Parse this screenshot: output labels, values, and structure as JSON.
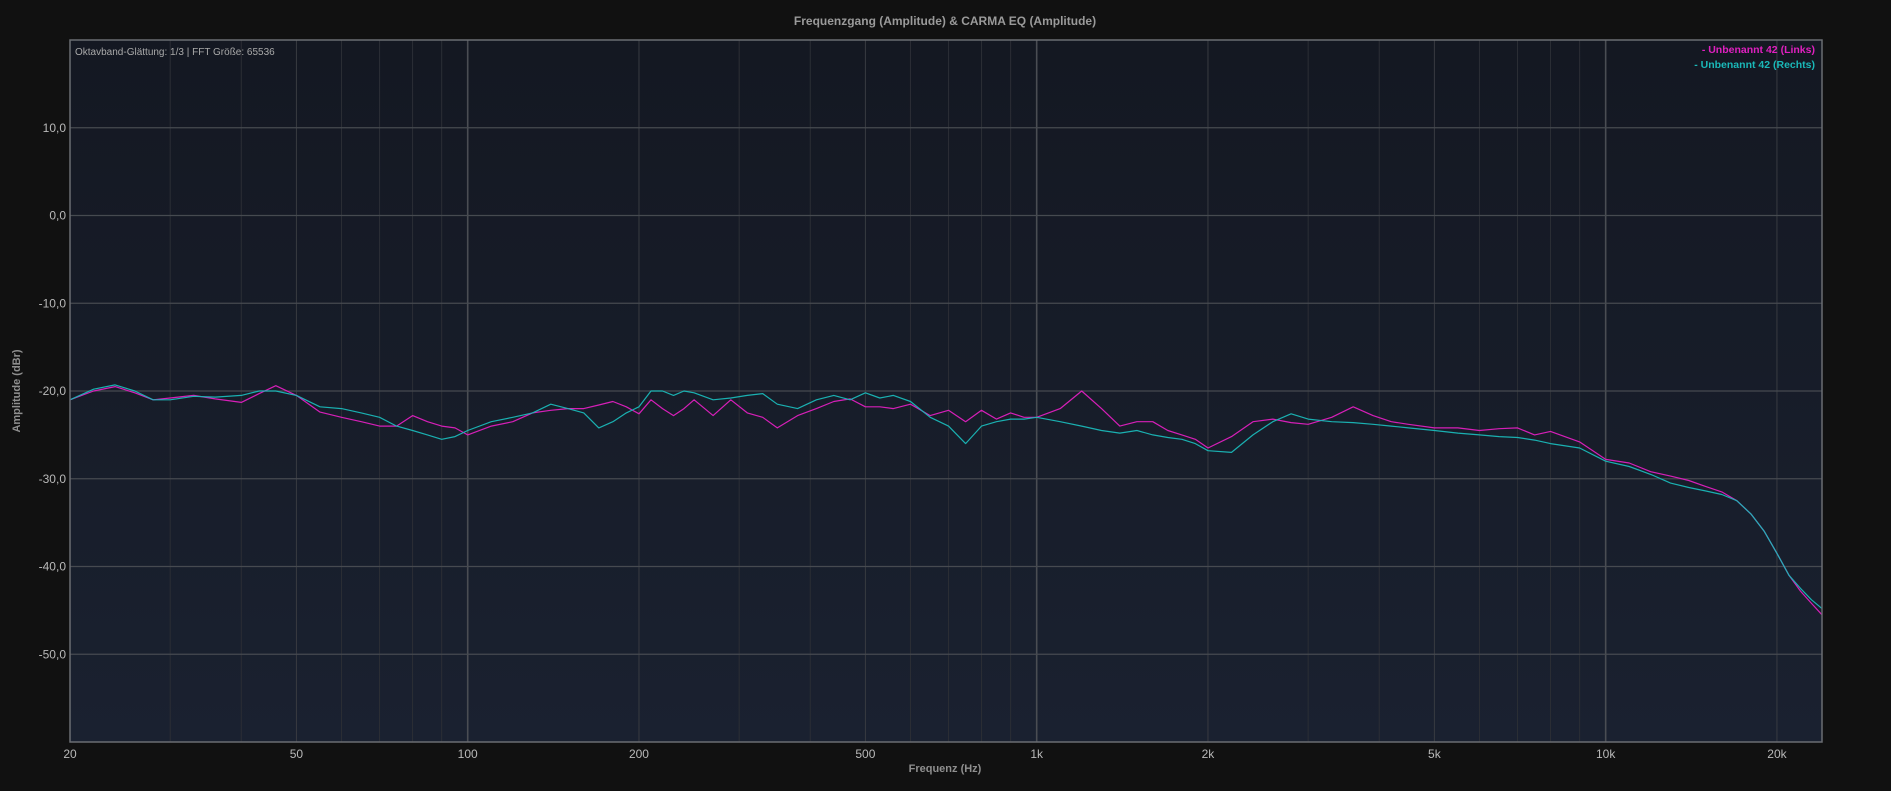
{
  "chart_data": {
    "type": "line",
    "title": "Frequenzgang (Amplitude) & CARMA EQ (Amplitude)",
    "info_text": "Oktavband-Glättung: 1/3 | FFT Größe: 65536",
    "xlabel": "Frequenz (Hz)",
    "ylabel": "Amplitude (dBr)",
    "x_scale": "log",
    "xlim": [
      20,
      24000
    ],
    "ylim": [
      -60,
      20
    ],
    "x_ticks": [
      {
        "value": 20,
        "label": "20"
      },
      {
        "value": 50,
        "label": "50"
      },
      {
        "value": 100,
        "label": "100"
      },
      {
        "value": 200,
        "label": "200"
      },
      {
        "value": 500,
        "label": "500"
      },
      {
        "value": 1000,
        "label": "1k"
      },
      {
        "value": 2000,
        "label": "2k"
      },
      {
        "value": 5000,
        "label": "5k"
      },
      {
        "value": 10000,
        "label": "10k"
      },
      {
        "value": 20000,
        "label": "20k"
      }
    ],
    "y_ticks": [
      {
        "value": 10,
        "label": "10,0"
      },
      {
        "value": 0,
        "label": "0,0"
      },
      {
        "value": -10,
        "label": "-10,0"
      },
      {
        "value": -20,
        "label": "-20,0"
      },
      {
        "value": -30,
        "label": "-30,0"
      },
      {
        "value": -40,
        "label": "-40,0"
      },
      {
        "value": -50,
        "label": "-50,0"
      }
    ],
    "grid": true,
    "legend_position": "top-right",
    "series": [
      {
        "name": "Unbenannt 42 (Links)",
        "legend_label": "- Unbenannt 42 (Links)",
        "color": "#e020c0",
        "x": [
          20,
          22,
          24,
          26,
          28,
          30,
          33,
          36,
          40,
          43,
          46,
          50,
          55,
          60,
          65,
          70,
          75,
          80,
          85,
          90,
          95,
          100,
          110,
          120,
          130,
          140,
          150,
          160,
          170,
          180,
          190,
          200,
          210,
          220,
          230,
          240,
          250,
          270,
          290,
          310,
          330,
          350,
          380,
          410,
          440,
          470,
          500,
          530,
          560,
          600,
          650,
          700,
          750,
          800,
          850,
          900,
          950,
          1000,
          1100,
          1200,
          1300,
          1400,
          1500,
          1600,
          1700,
          1800,
          1900,
          2000,
          2200,
          2400,
          2600,
          2800,
          3000,
          3300,
          3600,
          3900,
          4200,
          4500,
          5000,
          5500,
          6000,
          6500,
          7000,
          7500,
          8000,
          9000,
          10000,
          11000,
          12000,
          13000,
          14000,
          15000,
          16000,
          17000,
          18000,
          19000,
          20000,
          21000,
          22000,
          23000,
          24000
        ],
        "y": [
          -21.0,
          -20.0,
          -19.5,
          -20.2,
          -21.0,
          -20.8,
          -20.5,
          -20.9,
          -21.3,
          -20.3,
          -19.4,
          -20.5,
          -22.4,
          -23.0,
          -23.5,
          -24.0,
          -24.0,
          -22.8,
          -23.5,
          -24.0,
          -24.2,
          -25.0,
          -24.0,
          -23.5,
          -22.5,
          -22.2,
          -22.0,
          -22.0,
          -21.6,
          -21.2,
          -21.8,
          -22.6,
          -21.0,
          -22.0,
          -22.8,
          -22.0,
          -21.0,
          -22.8,
          -21.0,
          -22.5,
          -23.0,
          -24.2,
          -22.8,
          -22.0,
          -21.2,
          -20.9,
          -21.8,
          -21.8,
          -22.0,
          -21.5,
          -22.8,
          -22.2,
          -23.5,
          -22.2,
          -23.2,
          -22.5,
          -23.0,
          -23.0,
          -22.0,
          -20.0,
          -22.0,
          -24.0,
          -23.5,
          -23.5,
          -24.5,
          -25.0,
          -25.5,
          -26.5,
          -25.2,
          -23.5,
          -23.2,
          -23.6,
          -23.8,
          -23.0,
          -21.8,
          -22.8,
          -23.5,
          -23.8,
          -24.2,
          -24.2,
          -24.5,
          -24.3,
          -24.2,
          -25.0,
          -24.6,
          -25.8,
          -27.8,
          -28.2,
          -29.2,
          -29.7,
          -30.2,
          -30.9,
          -31.5,
          -32.5,
          -34.0,
          -36.0,
          -38.5,
          -41.0,
          -42.8,
          -44.2,
          -45.5
        ]
      },
      {
        "name": "Unbenannt 42 (Rechts)",
        "legend_label": "- Unbenannt 42 (Rechts)",
        "color": "#1ab8b8",
        "x": [
          20,
          22,
          24,
          26,
          28,
          30,
          33,
          36,
          40,
          43,
          46,
          50,
          55,
          60,
          65,
          70,
          75,
          80,
          85,
          90,
          95,
          100,
          110,
          120,
          130,
          140,
          150,
          160,
          170,
          180,
          190,
          200,
          210,
          220,
          230,
          240,
          250,
          270,
          290,
          310,
          330,
          350,
          380,
          410,
          440,
          470,
          500,
          530,
          560,
          600,
          650,
          700,
          750,
          800,
          850,
          900,
          950,
          1000,
          1100,
          1200,
          1300,
          1400,
          1500,
          1600,
          1700,
          1800,
          1900,
          2000,
          2200,
          2400,
          2600,
          2800,
          3000,
          3300,
          3600,
          3900,
          4200,
          4500,
          5000,
          5500,
          6000,
          6500,
          7000,
          7500,
          8000,
          9000,
          10000,
          11000,
          12000,
          13000,
          14000,
          15000,
          16000,
          17000,
          18000,
          19000,
          20000,
          21000,
          22000,
          23000,
          24000
        ],
        "y": [
          -21.0,
          -19.8,
          -19.3,
          -20.0,
          -21.0,
          -21.0,
          -20.6,
          -20.7,
          -20.5,
          -20.0,
          -20.0,
          -20.5,
          -21.8,
          -22.0,
          -22.5,
          -23.0,
          -24.0,
          -24.5,
          -25.0,
          -25.5,
          -25.2,
          -24.5,
          -23.5,
          -23.0,
          -22.5,
          -21.5,
          -22.0,
          -22.5,
          -24.2,
          -23.5,
          -22.5,
          -21.8,
          -20.0,
          -20.0,
          -20.5,
          -20.0,
          -20.2,
          -21.0,
          -20.8,
          -20.5,
          -20.3,
          -21.5,
          -22.0,
          -21.0,
          -20.5,
          -21.0,
          -20.2,
          -20.8,
          -20.5,
          -21.2,
          -23.0,
          -24.0,
          -26.0,
          -24.0,
          -23.5,
          -23.2,
          -23.2,
          -23.0,
          -23.5,
          -24.0,
          -24.5,
          -24.8,
          -24.5,
          -25.0,
          -25.3,
          -25.5,
          -26.0,
          -26.8,
          -27.0,
          -25.0,
          -23.5,
          -22.6,
          -23.2,
          -23.5,
          -23.6,
          -23.8,
          -24.0,
          -24.2,
          -24.5,
          -24.8,
          -25.0,
          -25.2,
          -25.3,
          -25.6,
          -26.0,
          -26.5,
          -28.0,
          -28.6,
          -29.5,
          -30.5,
          -31.0,
          -31.4,
          -31.8,
          -32.5,
          -34.0,
          -36.0,
          -38.5,
          -41.0,
          -42.5,
          -43.8,
          -44.8
        ]
      }
    ]
  }
}
